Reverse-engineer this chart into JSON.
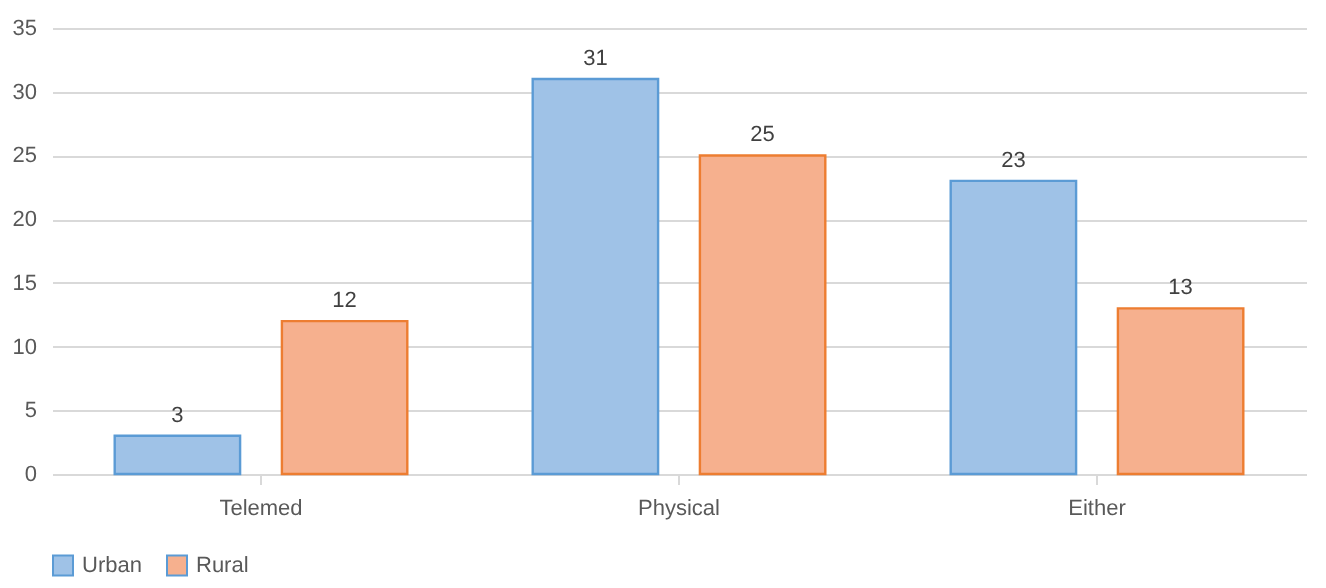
{
  "chart_data": {
    "type": "bar",
    "categories": [
      "Telemed",
      "Physical",
      "Either"
    ],
    "series": [
      {
        "name": "Urban",
        "color": "#9fc2e7",
        "values": [
          3,
          31,
          23
        ]
      },
      {
        "name": "Rural",
        "color": "#f6b08e",
        "values": [
          12,
          25,
          13
        ]
      }
    ],
    "ylim": [
      0,
      35
    ],
    "yticks": [
      0,
      5,
      10,
      15,
      20,
      25,
      30,
      35
    ],
    "grid": "y",
    "legend": "bottom",
    "data_labels": true
  }
}
